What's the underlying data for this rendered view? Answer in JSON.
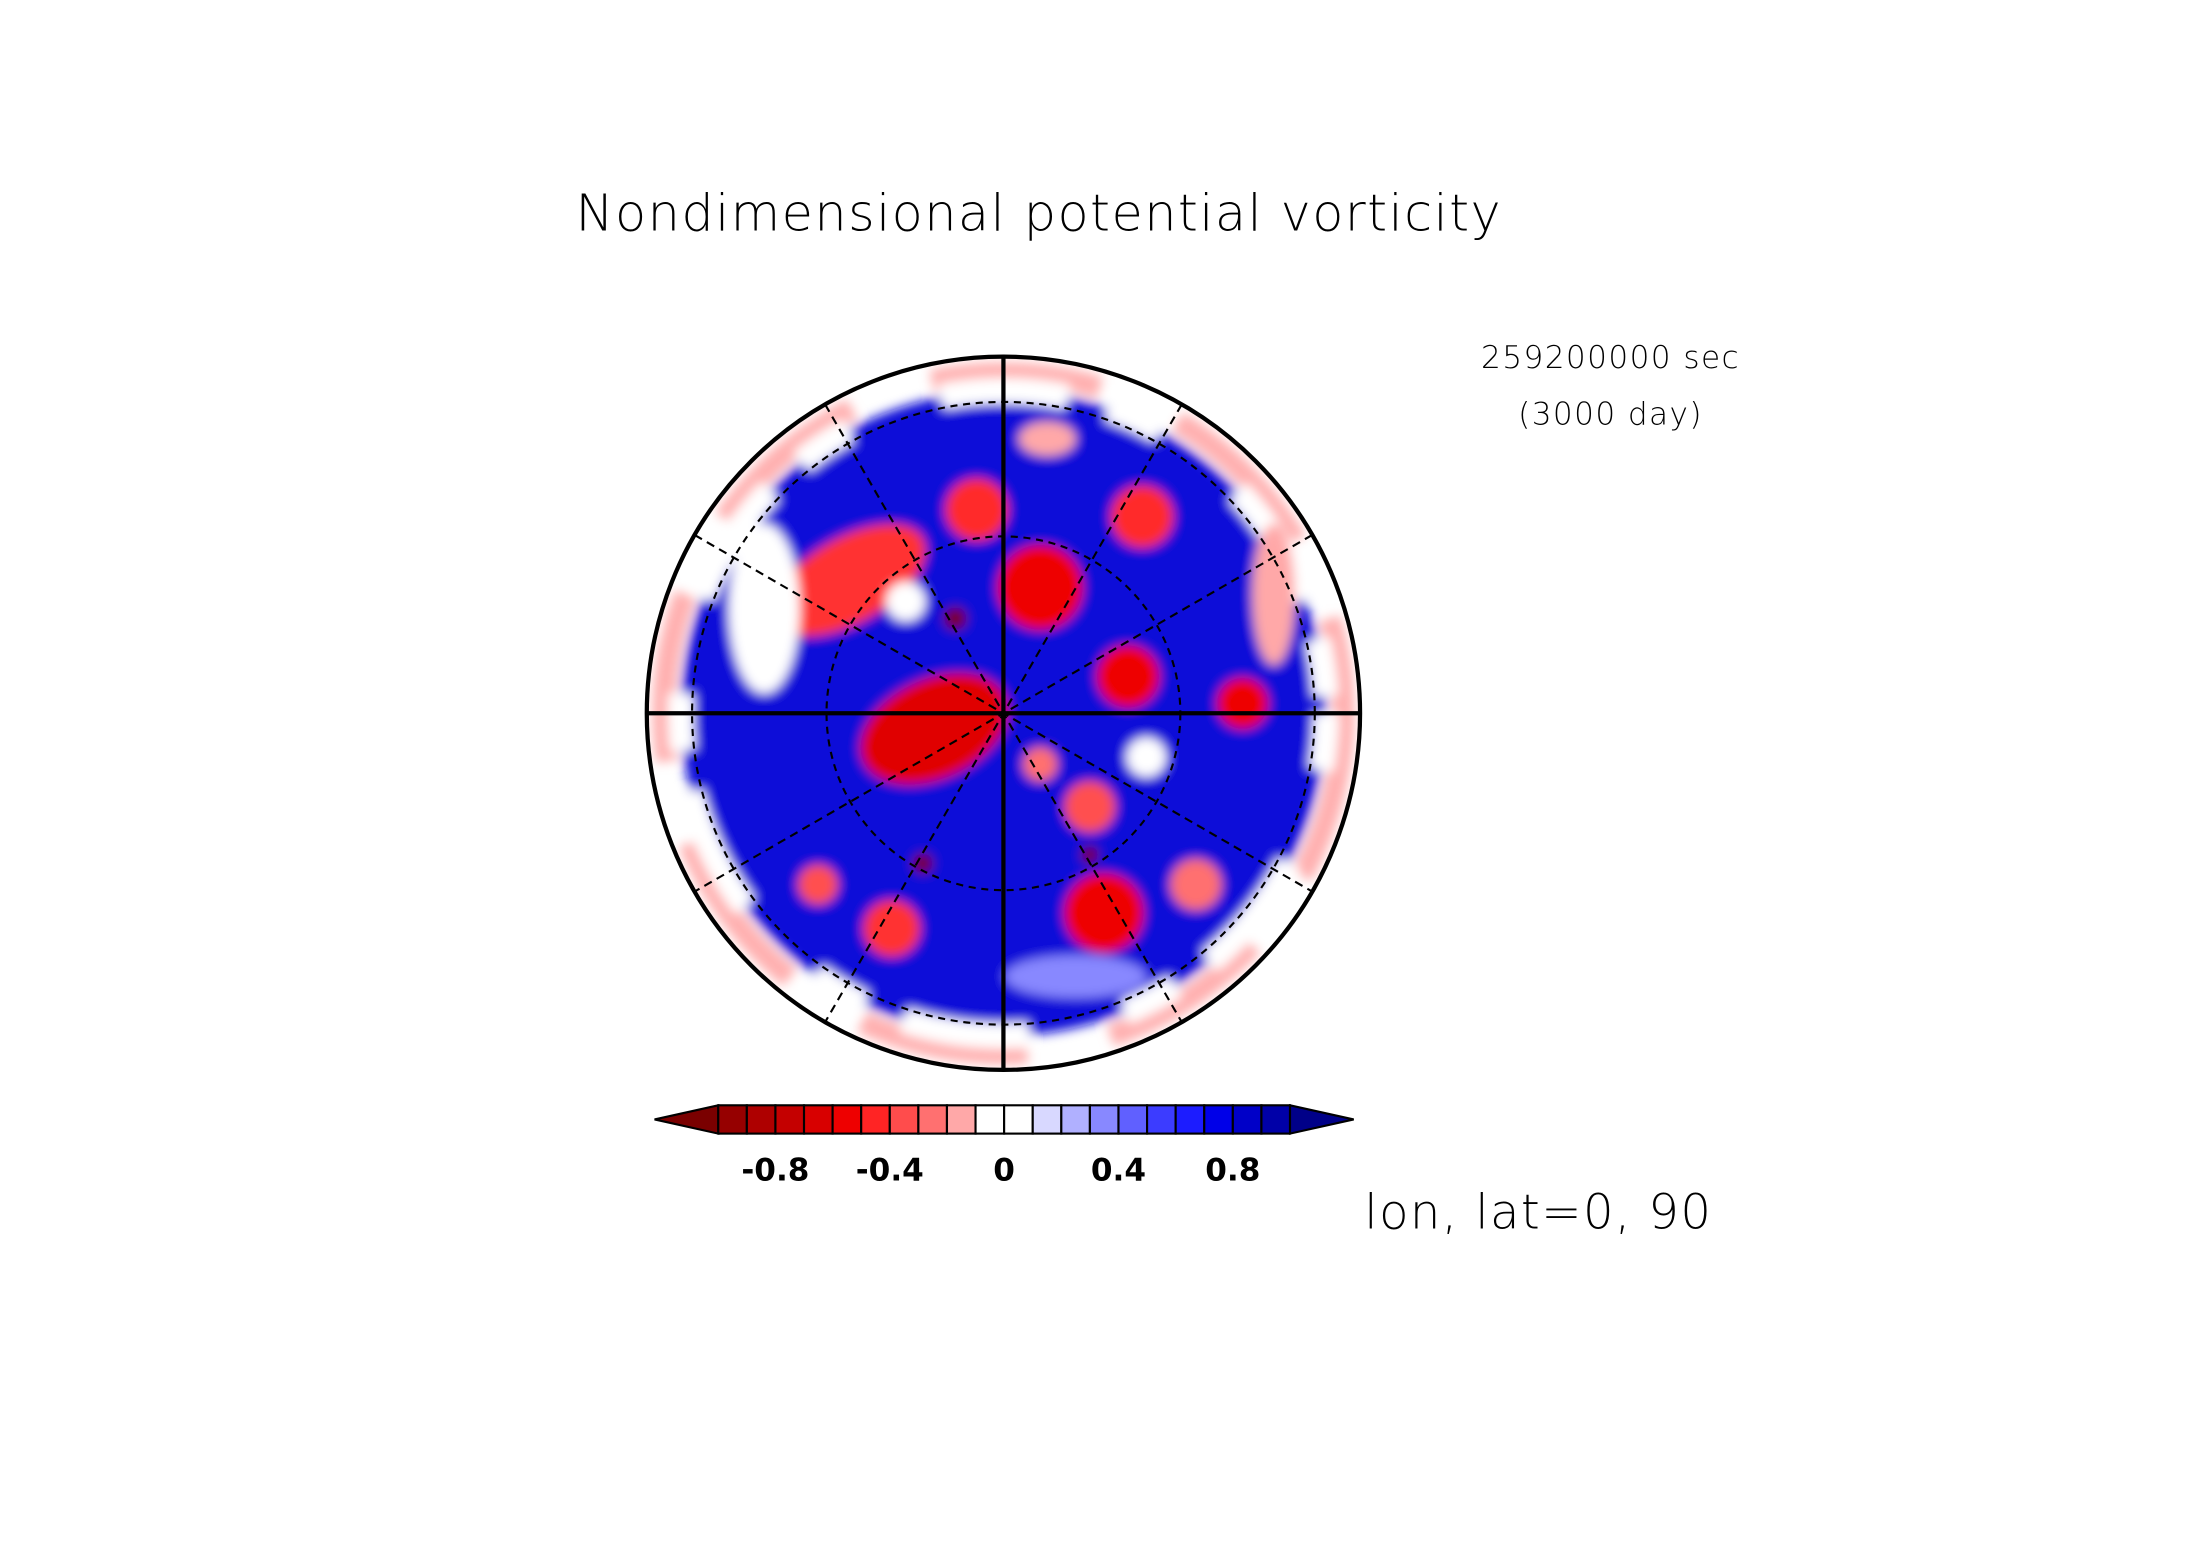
{
  "chart_data": {
    "type": "polar-contour",
    "title": "Nondimensional potential vorticity",
    "annotations": [
      "259200000 sec",
      "(3000 day)",
      "lon, lat=0, 90"
    ],
    "colorbar": {
      "levels": [
        -1,
        -0.9,
        -0.8,
        -0.7,
        -0.6,
        -0.5,
        -0.4,
        -0.3,
        -0.2,
        -0.1,
        0,
        0.1,
        0.2,
        0.3,
        0.4,
        0.5,
        0.6,
        0.7,
        0.8,
        0.9,
        1
      ],
      "colors": [
        "#7a0000",
        "#960000",
        "#ae0000",
        "#c40000",
        "#d80000",
        "#ee0000",
        "#ff2424",
        "#ff4c4c",
        "#ff7070",
        "#ffa8a8",
        "#ffffff",
        "#ffffff",
        "#d8d8ff",
        "#b0b0ff",
        "#8888ff",
        "#6060ff",
        "#3c3cff",
        "#1c1cff",
        "#0000e8",
        "#0000c8",
        "#0000a8",
        "#000088"
      ],
      "xlim": [
        -1,
        1
      ],
      "xticks": [
        -0.8,
        -0.4,
        0,
        0.4,
        0.8
      ]
    }
  }
}
